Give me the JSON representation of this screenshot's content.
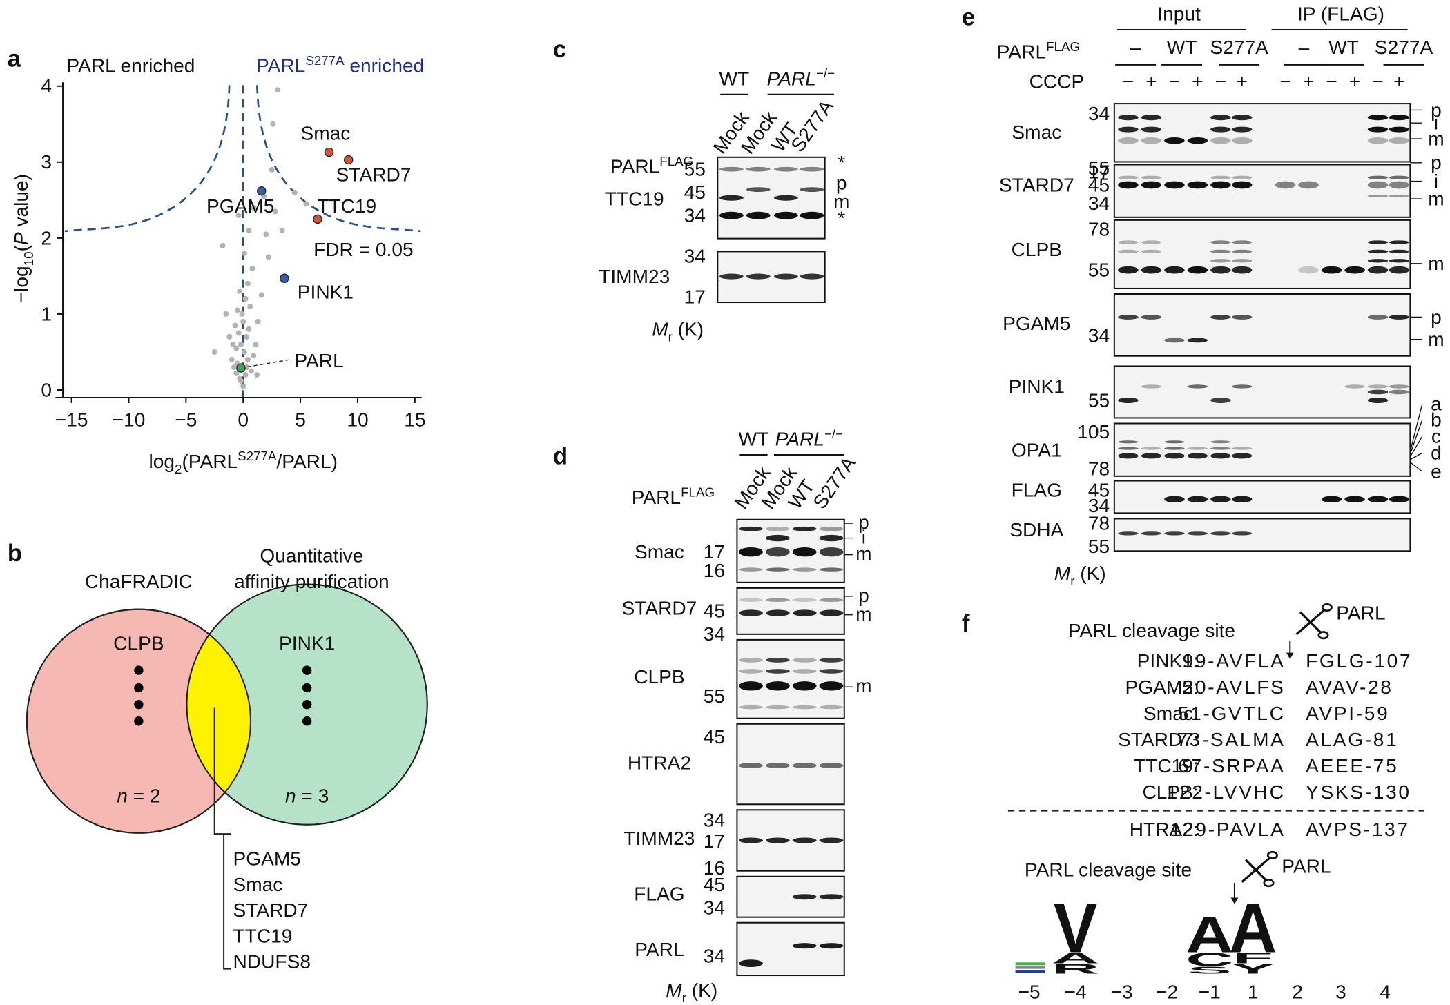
{
  "chart_data": {
    "type": "scatter",
    "panel_label": "a",
    "left_annotation": "PARL enriched",
    "right_annotation": {
      "base": "PARL",
      "sup": "S277A",
      "rest": " enriched"
    },
    "threshold_label": "FDR = 0.05",
    "y_label": {
      "pre": "−log",
      "sub": "10",
      "open": "(",
      "italic": "P",
      "post": " value)"
    },
    "x_label": {
      "pre": "log",
      "sub": "2",
      "open": "(PARL",
      "sup": "S277A",
      "post": "/PARL)"
    },
    "xlim": [
      -16,
      16
    ],
    "ylim": [
      -0.1,
      4.05
    ],
    "xticks": [
      {
        "value": -15,
        "label": "−15"
      },
      {
        "value": -10,
        "label": "−10"
      },
      {
        "value": -5,
        "label": "−5"
      },
      0,
      5,
      10,
      15
    ],
    "yticks": [
      0,
      1,
      2,
      3,
      4
    ],
    "background": {
      "color": "#b3b3b3",
      "x": [
        -0.3,
        0.2,
        -0.5,
        0.4,
        0.1,
        -0.8,
        0.7,
        -0.2,
        0.3,
        -0.6,
        0.5,
        0.0,
        -0.4,
        0.9,
        -1.0,
        1.1,
        -0.1,
        0.6,
        -0.7,
        0.2,
        -0.3,
        0.4,
        1.3,
        -1.2,
        0.8,
        -0.5,
        0.1,
        0.3,
        -0.2,
        1.6,
        -1.5,
        0.5,
        2.2,
        2.8,
        3.0,
        2.6,
        2.5,
        -1.8,
        -0.4,
        1.8,
        0.9,
        -2.5,
        2.0,
        3.4,
        4.5,
        5.5,
        -0.6,
        0.0,
        1.2,
        -0.9
      ],
      "y": [
        0.15,
        0.2,
        0.35,
        0.4,
        0.5,
        0.3,
        0.25,
        0.6,
        0.7,
        0.55,
        0.8,
        0.9,
        0.75,
        0.45,
        0.4,
        0.6,
        1.0,
        1.1,
        0.85,
        1.2,
        1.3,
        1.4,
        0.9,
        0.7,
        1.6,
        1.05,
        1.8,
        0.3,
        0.12,
        1.25,
        1.0,
        2.1,
        1.75,
        2.35,
        3.95,
        3.5,
        2.9,
        1.9,
        2.3,
        2.55,
        2.4,
        0.5,
        2.05,
        2.1,
        2.6,
        2.45,
        0.22,
        0.05,
        0.2,
        0.6
      ]
    },
    "points": [
      {
        "label": "Smac",
        "x": 7.5,
        "y": 3.13,
        "color": "#d2553a"
      },
      {
        "label": "STARD7",
        "x": 9.2,
        "y": 3.03,
        "color": "#d2553a"
      },
      {
        "label": "TTC19",
        "x": 6.5,
        "y": 2.25,
        "color": "#d2553a"
      },
      {
        "label": "PGAM5",
        "x": 1.6,
        "y": 2.62,
        "color": "#2f5fa8"
      },
      {
        "label": "PINK1",
        "x": 3.6,
        "y": 1.47,
        "color": "#2f5fa8"
      },
      {
        "label": "PARL",
        "x": -0.2,
        "y": 0.29,
        "color": "#3aa65a"
      }
    ]
  },
  "panel_b": {
    "label": "b",
    "left_title": "ChaFRADIC",
    "right_title": [
      "Quantitative",
      "affinity purification"
    ],
    "left_item": "CLPB",
    "right_item": "PINK1",
    "left_count": {
      "italic": "n",
      "rest": " = 2"
    },
    "right_count": {
      "italic": "n",
      "rest": " = 3"
    },
    "shared": [
      "PGAM5",
      "Smac",
      "STARD7",
      "TTC19",
      "NDUFS8"
    ]
  },
  "panel_c": {
    "label": "c",
    "genotypes": [
      "WT",
      {
        "base": "PARL",
        "sup": "−/−"
      }
    ],
    "construct": {
      "base": "PARL",
      "sup": "FLAG"
    },
    "lanes": [
      "Mock",
      "Mock",
      "WT",
      "S277A"
    ],
    "blots": [
      {
        "protein": "TTC19",
        "markers": [
          55,
          45,
          34
        ],
        "side": [
          "*",
          "p",
          "m",
          "*"
        ]
      },
      {
        "protein": "TIMM23",
        "markers": [
          34,
          17
        ]
      }
    ],
    "mr": {
      "italic": "M",
      "sub": "r",
      "rest": " (K)"
    }
  },
  "panel_d": {
    "label": "d",
    "genotypes": [
      "WT",
      {
        "base": "PARL",
        "sup": "−/−"
      }
    ],
    "construct": {
      "base": "PARL",
      "sup": "FLAG"
    },
    "lanes": [
      "Mock",
      "Mock",
      "WT",
      "S277A"
    ],
    "blots": [
      {
        "protein": "Smac",
        "markers": [
          17,
          16
        ],
        "side": [
          "p",
          "i",
          "m"
        ]
      },
      {
        "protein": "STARD7",
        "markers": [
          45,
          34
        ],
        "side": [
          "p",
          "m"
        ]
      },
      {
        "protein": "CLPB",
        "markers": [
          55
        ],
        "side": [
          "m"
        ]
      },
      {
        "protein": "HTRA2",
        "markers": [
          45
        ]
      },
      {
        "protein": "TIMM23",
        "markers": [
          34,
          17,
          16
        ]
      },
      {
        "protein": "FLAG",
        "markers": [
          45,
          34
        ]
      },
      {
        "protein": "PARL",
        "markers": [
          34
        ]
      }
    ],
    "mr": {
      "italic": "M",
      "sub": "r",
      "rest": " (K)"
    }
  },
  "panel_e": {
    "label": "e",
    "groups": [
      "Input",
      "IP (FLAG)"
    ],
    "construct": {
      "base": "PARL",
      "sup": "FLAG"
    },
    "constructs": [
      "–",
      "WT",
      "S277A",
      "–",
      "WT",
      "S277A"
    ],
    "treatment": "CCCP",
    "treatment_signs": [
      "−",
      "+",
      "−",
      "+",
      "−",
      "+",
      "−",
      "+",
      "−",
      "+",
      "−",
      "+"
    ],
    "blots": [
      {
        "protein": "Smac",
        "markers": [
          34,
          17
        ],
        "side": [
          "p",
          "i",
          "m"
        ]
      },
      {
        "protein": "STARD7",
        "markers": [
          55,
          45,
          34
        ],
        "side": [
          "p",
          "i",
          "m"
        ]
      },
      {
        "protein": "CLPB",
        "markers": [
          78,
          55
        ],
        "side": [
          "m"
        ]
      },
      {
        "protein": "PGAM5",
        "markers": [
          34
        ],
        "side": [
          "p",
          "m"
        ]
      },
      {
        "protein": "PINK1",
        "markers": [
          55
        ]
      },
      {
        "protein": "OPA1",
        "markers": [
          105,
          78
        ],
        "side": [
          "a",
          "b",
          "c",
          "d",
          "e"
        ]
      },
      {
        "protein": "FLAG",
        "markers": [
          45,
          34
        ]
      },
      {
        "protein": "SDHA",
        "markers": [
          78,
          55
        ]
      }
    ],
    "mr": {
      "italic": "M",
      "sub": "r",
      "rest": " (K)"
    }
  },
  "panel_f": {
    "label": "f",
    "site_label": "PARL cleavage site",
    "protease": "PARL",
    "rows": [
      {
        "protein": "PINK1:",
        "left": "99-AVFLA",
        "right": "FGLG-107"
      },
      {
        "protein": "PGAM5:",
        "left": "20-AVLFS",
        "right": "AVAV-28"
      },
      {
        "protein": "Smac:",
        "left": "51-GVTLC",
        "right": "AVPI-59"
      },
      {
        "protein": "STARD7:",
        "left": "73-SALMA",
        "right": "ALAG-81"
      },
      {
        "protein": "TTC19:",
        "left": "67-SRPAA",
        "right": "AEEE-75"
      },
      {
        "protein": "CLPB:",
        "left": "122-LVVHC",
        "right": "YSKS-130"
      }
    ],
    "reference": {
      "protein": "HTRA2:",
      "left": "129-PAVLA",
      "right": "AVPS-137"
    },
    "logo_title": "PARL cleavage site",
    "logo_protease": "PARL",
    "positions": [
      {
        "value": -5,
        "label": "−5"
      },
      {
        "value": -4,
        "label": "−4"
      },
      {
        "value": -3,
        "label": "−3"
      },
      {
        "value": -2,
        "label": "−2"
      },
      {
        "value": -1,
        "label": "−1"
      },
      1,
      2,
      3,
      4
    ],
    "logo_columns": [
      null,
      [
        "V",
        "A",
        "R"
      ],
      null,
      null,
      [
        "A",
        "C",
        "S"
      ],
      [
        "A",
        "F",
        "Y"
      ],
      null,
      null,
      null
    ]
  }
}
